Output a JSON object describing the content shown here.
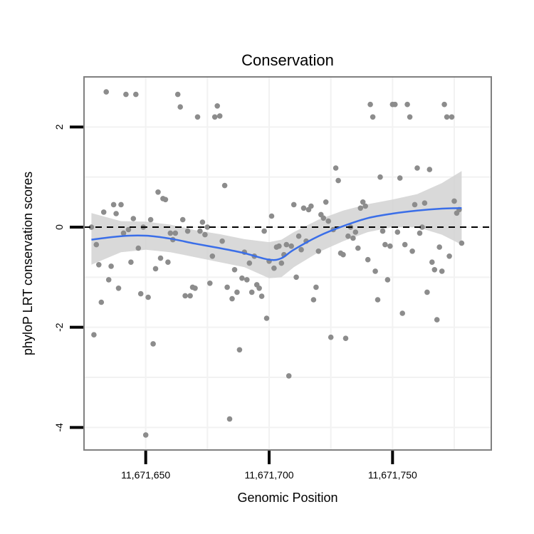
{
  "chart_data": {
    "type": "scatter",
    "title": "Conservation",
    "xlabel": "Genomic Position",
    "ylabel": "phyloP LRT conservation scores",
    "xlim": [
      11671625,
      11671790
    ],
    "ylim": [
      -4.45,
      3.0
    ],
    "x_ticks": [
      {
        "value": 11671650,
        "label": "11,671,650"
      },
      {
        "value": 11671700,
        "label": "11,671,700"
      },
      {
        "value": 11671750,
        "label": "11,671,750"
      }
    ],
    "y_ticks": [
      {
        "value": 2,
        "label": "2"
      },
      {
        "value": 0,
        "label": "0"
      },
      {
        "value": -2,
        "label": "-2"
      },
      {
        "value": -4,
        "label": "-4"
      }
    ],
    "reference_line": {
      "y": 0,
      "style": "dashed"
    },
    "colors": {
      "points": "#8c8c8c",
      "smooth": "#3a6ee8",
      "band": "#d2d2d2",
      "panel_border": "#808080",
      "grid": "#f2f2f2",
      "reference": "#000000"
    },
    "points": [
      [
        11671628,
        0.0
      ],
      [
        11671629,
        -2.15
      ],
      [
        11671630,
        -0.35
      ],
      [
        11671631,
        -0.75
      ],
      [
        11671632,
        -1.5
      ],
      [
        11671633,
        0.3
      ],
      [
        11671634,
        2.7
      ],
      [
        11671635,
        -1.05
      ],
      [
        11671636,
        -0.78
      ],
      [
        11671637,
        0.45
      ],
      [
        11671638,
        0.27
      ],
      [
        11671639,
        -1.22
      ],
      [
        11671640,
        0.45
      ],
      [
        11671641,
        -0.12
      ],
      [
        11671642,
        2.65
      ],
      [
        11671643,
        -0.05
      ],
      [
        11671644,
        -0.7
      ],
      [
        11671645,
        0.17
      ],
      [
        11671646,
        2.65
      ],
      [
        11671647,
        -0.42
      ],
      [
        11671648,
        -1.33
      ],
      [
        11671649,
        0.0
      ],
      [
        11671650,
        -4.15
      ],
      [
        11671651,
        -1.4
      ],
      [
        11671652,
        0.15
      ],
      [
        11671653,
        -2.33
      ],
      [
        11671654,
        -0.83
      ],
      [
        11671655,
        0.7
      ],
      [
        11671656,
        -0.62
      ],
      [
        11671657,
        0.57
      ],
      [
        11671658,
        0.55
      ],
      [
        11671659,
        -0.7
      ],
      [
        11671660,
        -0.12
      ],
      [
        11671661,
        -0.25
      ],
      [
        11671662,
        -0.12
      ],
      [
        11671663,
        2.65
      ],
      [
        11671664,
        2.4
      ],
      [
        11671665,
        0.15
      ],
      [
        11671666,
        -1.37
      ],
      [
        11671667,
        -0.08
      ],
      [
        11671668,
        -1.37
      ],
      [
        11671669,
        -1.2
      ],
      [
        11671670,
        -1.22
      ],
      [
        11671671,
        2.2
      ],
      [
        11671672,
        -0.08
      ],
      [
        11671673,
        0.1
      ],
      [
        11671674,
        -0.15
      ],
      [
        11671675,
        0.0
      ],
      [
        11671676,
        -1.12
      ],
      [
        11671677,
        -0.58
      ],
      [
        11671678,
        2.2
      ],
      [
        11671679,
        2.42
      ],
      [
        11671680,
        2.22
      ],
      [
        11671681,
        -0.28
      ],
      [
        11671682,
        0.83
      ],
      [
        11671683,
        -1.2
      ],
      [
        11671684,
        -3.83
      ],
      [
        11671685,
        -1.43
      ],
      [
        11671686,
        -0.85
      ],
      [
        11671687,
        -1.3
      ],
      [
        11671688,
        -2.45
      ],
      [
        11671689,
        -1.02
      ],
      [
        11671690,
        -0.5
      ],
      [
        11671691,
        -1.05
      ],
      [
        11671692,
        -0.72
      ],
      [
        11671693,
        -1.3
      ],
      [
        11671694,
        -0.58
      ],
      [
        11671695,
        -1.15
      ],
      [
        11671696,
        -1.22
      ],
      [
        11671697,
        -1.38
      ],
      [
        11671698,
        -0.08
      ],
      [
        11671699,
        -1.82
      ],
      [
        11671700,
        -0.68
      ],
      [
        11671701,
        0.22
      ],
      [
        11671702,
        -0.82
      ],
      [
        11671703,
        -0.4
      ],
      [
        11671704,
        -0.38
      ],
      [
        11671705,
        -0.72
      ],
      [
        11671706,
        -0.55
      ],
      [
        11671707,
        -0.35
      ],
      [
        11671708,
        -2.97
      ],
      [
        11671709,
        -0.38
      ],
      [
        11671710,
        0.45
      ],
      [
        11671711,
        -1.0
      ],
      [
        11671712,
        -0.18
      ],
      [
        11671713,
        -0.45
      ],
      [
        11671714,
        0.38
      ],
      [
        11671715,
        -0.28
      ],
      [
        11671716,
        0.35
      ],
      [
        11671717,
        0.42
      ],
      [
        11671718,
        -1.45
      ],
      [
        11671719,
        -1.2
      ],
      [
        11671720,
        -0.48
      ],
      [
        11671721,
        0.25
      ],
      [
        11671722,
        0.18
      ],
      [
        11671723,
        0.5
      ],
      [
        11671724,
        0.12
      ],
      [
        11671725,
        -2.2
      ],
      [
        11671726,
        -0.05
      ],
      [
        11671727,
        1.18
      ],
      [
        11671728,
        0.93
      ],
      [
        11671729,
        -0.52
      ],
      [
        11671730,
        -0.55
      ],
      [
        11671731,
        -2.22
      ],
      [
        11671732,
        -0.18
      ],
      [
        11671733,
        0.0
      ],
      [
        11671734,
        -0.22
      ],
      [
        11671735,
        -0.1
      ],
      [
        11671736,
        -0.42
      ],
      [
        11671737,
        0.38
      ],
      [
        11671738,
        0.5
      ],
      [
        11671739,
        0.42
      ],
      [
        11671740,
        -0.65
      ],
      [
        11671741,
        2.45
      ],
      [
        11671742,
        2.2
      ],
      [
        11671743,
        -0.88
      ],
      [
        11671744,
        -1.45
      ],
      [
        11671745,
        1.0
      ],
      [
        11671746,
        -0.08
      ],
      [
        11671747,
        -0.35
      ],
      [
        11671748,
        -1.05
      ],
      [
        11671749,
        -0.38
      ],
      [
        11671750,
        2.45
      ],
      [
        11671751,
        2.45
      ],
      [
        11671752,
        -0.1
      ],
      [
        11671753,
        0.98
      ],
      [
        11671754,
        -1.72
      ],
      [
        11671755,
        -0.35
      ],
      [
        11671756,
        2.45
      ],
      [
        11671757,
        2.2
      ],
      [
        11671758,
        -0.48
      ],
      [
        11671759,
        0.45
      ],
      [
        11671760,
        1.18
      ],
      [
        11671761,
        -0.12
      ],
      [
        11671762,
        0.0
      ],
      [
        11671763,
        0.48
      ],
      [
        11671764,
        -1.3
      ],
      [
        11671765,
        1.15
      ],
      [
        11671766,
        -0.7
      ],
      [
        11671767,
        -0.85
      ],
      [
        11671768,
        -1.85
      ],
      [
        11671769,
        -0.4
      ],
      [
        11671770,
        -0.88
      ],
      [
        11671771,
        2.45
      ],
      [
        11671772,
        2.2
      ],
      [
        11671773,
        -0.58
      ],
      [
        11671774,
        2.2
      ],
      [
        11671775,
        0.52
      ],
      [
        11671776,
        0.28
      ],
      [
        11671777,
        0.35
      ],
      [
        11671778,
        -0.32
      ]
    ],
    "smooth_x": [
      11671628,
      11671640,
      11671650,
      11671660,
      11671670,
      11671680,
      11671690,
      11671700,
      11671705,
      11671710,
      11671720,
      11671730,
      11671740,
      11671750,
      11671760,
      11671770,
      11671778
    ],
    "smooth_y": [
      -0.25,
      -0.18,
      -0.17,
      -0.23,
      -0.33,
      -0.42,
      -0.52,
      -0.65,
      -0.62,
      -0.45,
      -0.18,
      0.02,
      0.18,
      0.27,
      0.33,
      0.37,
      0.38
    ],
    "smooth_lower": [
      -0.75,
      -0.5,
      -0.45,
      -0.5,
      -0.6,
      -0.7,
      -0.8,
      -1.02,
      -1.0,
      -0.8,
      -0.5,
      -0.28,
      -0.1,
      0.0,
      0.0,
      -0.15,
      -0.35
    ],
    "smooth_upper": [
      0.28,
      0.12,
      0.11,
      0.05,
      -0.06,
      -0.14,
      -0.24,
      -0.3,
      -0.25,
      -0.1,
      0.15,
      0.33,
      0.46,
      0.55,
      0.66,
      0.88,
      1.12
    ]
  }
}
